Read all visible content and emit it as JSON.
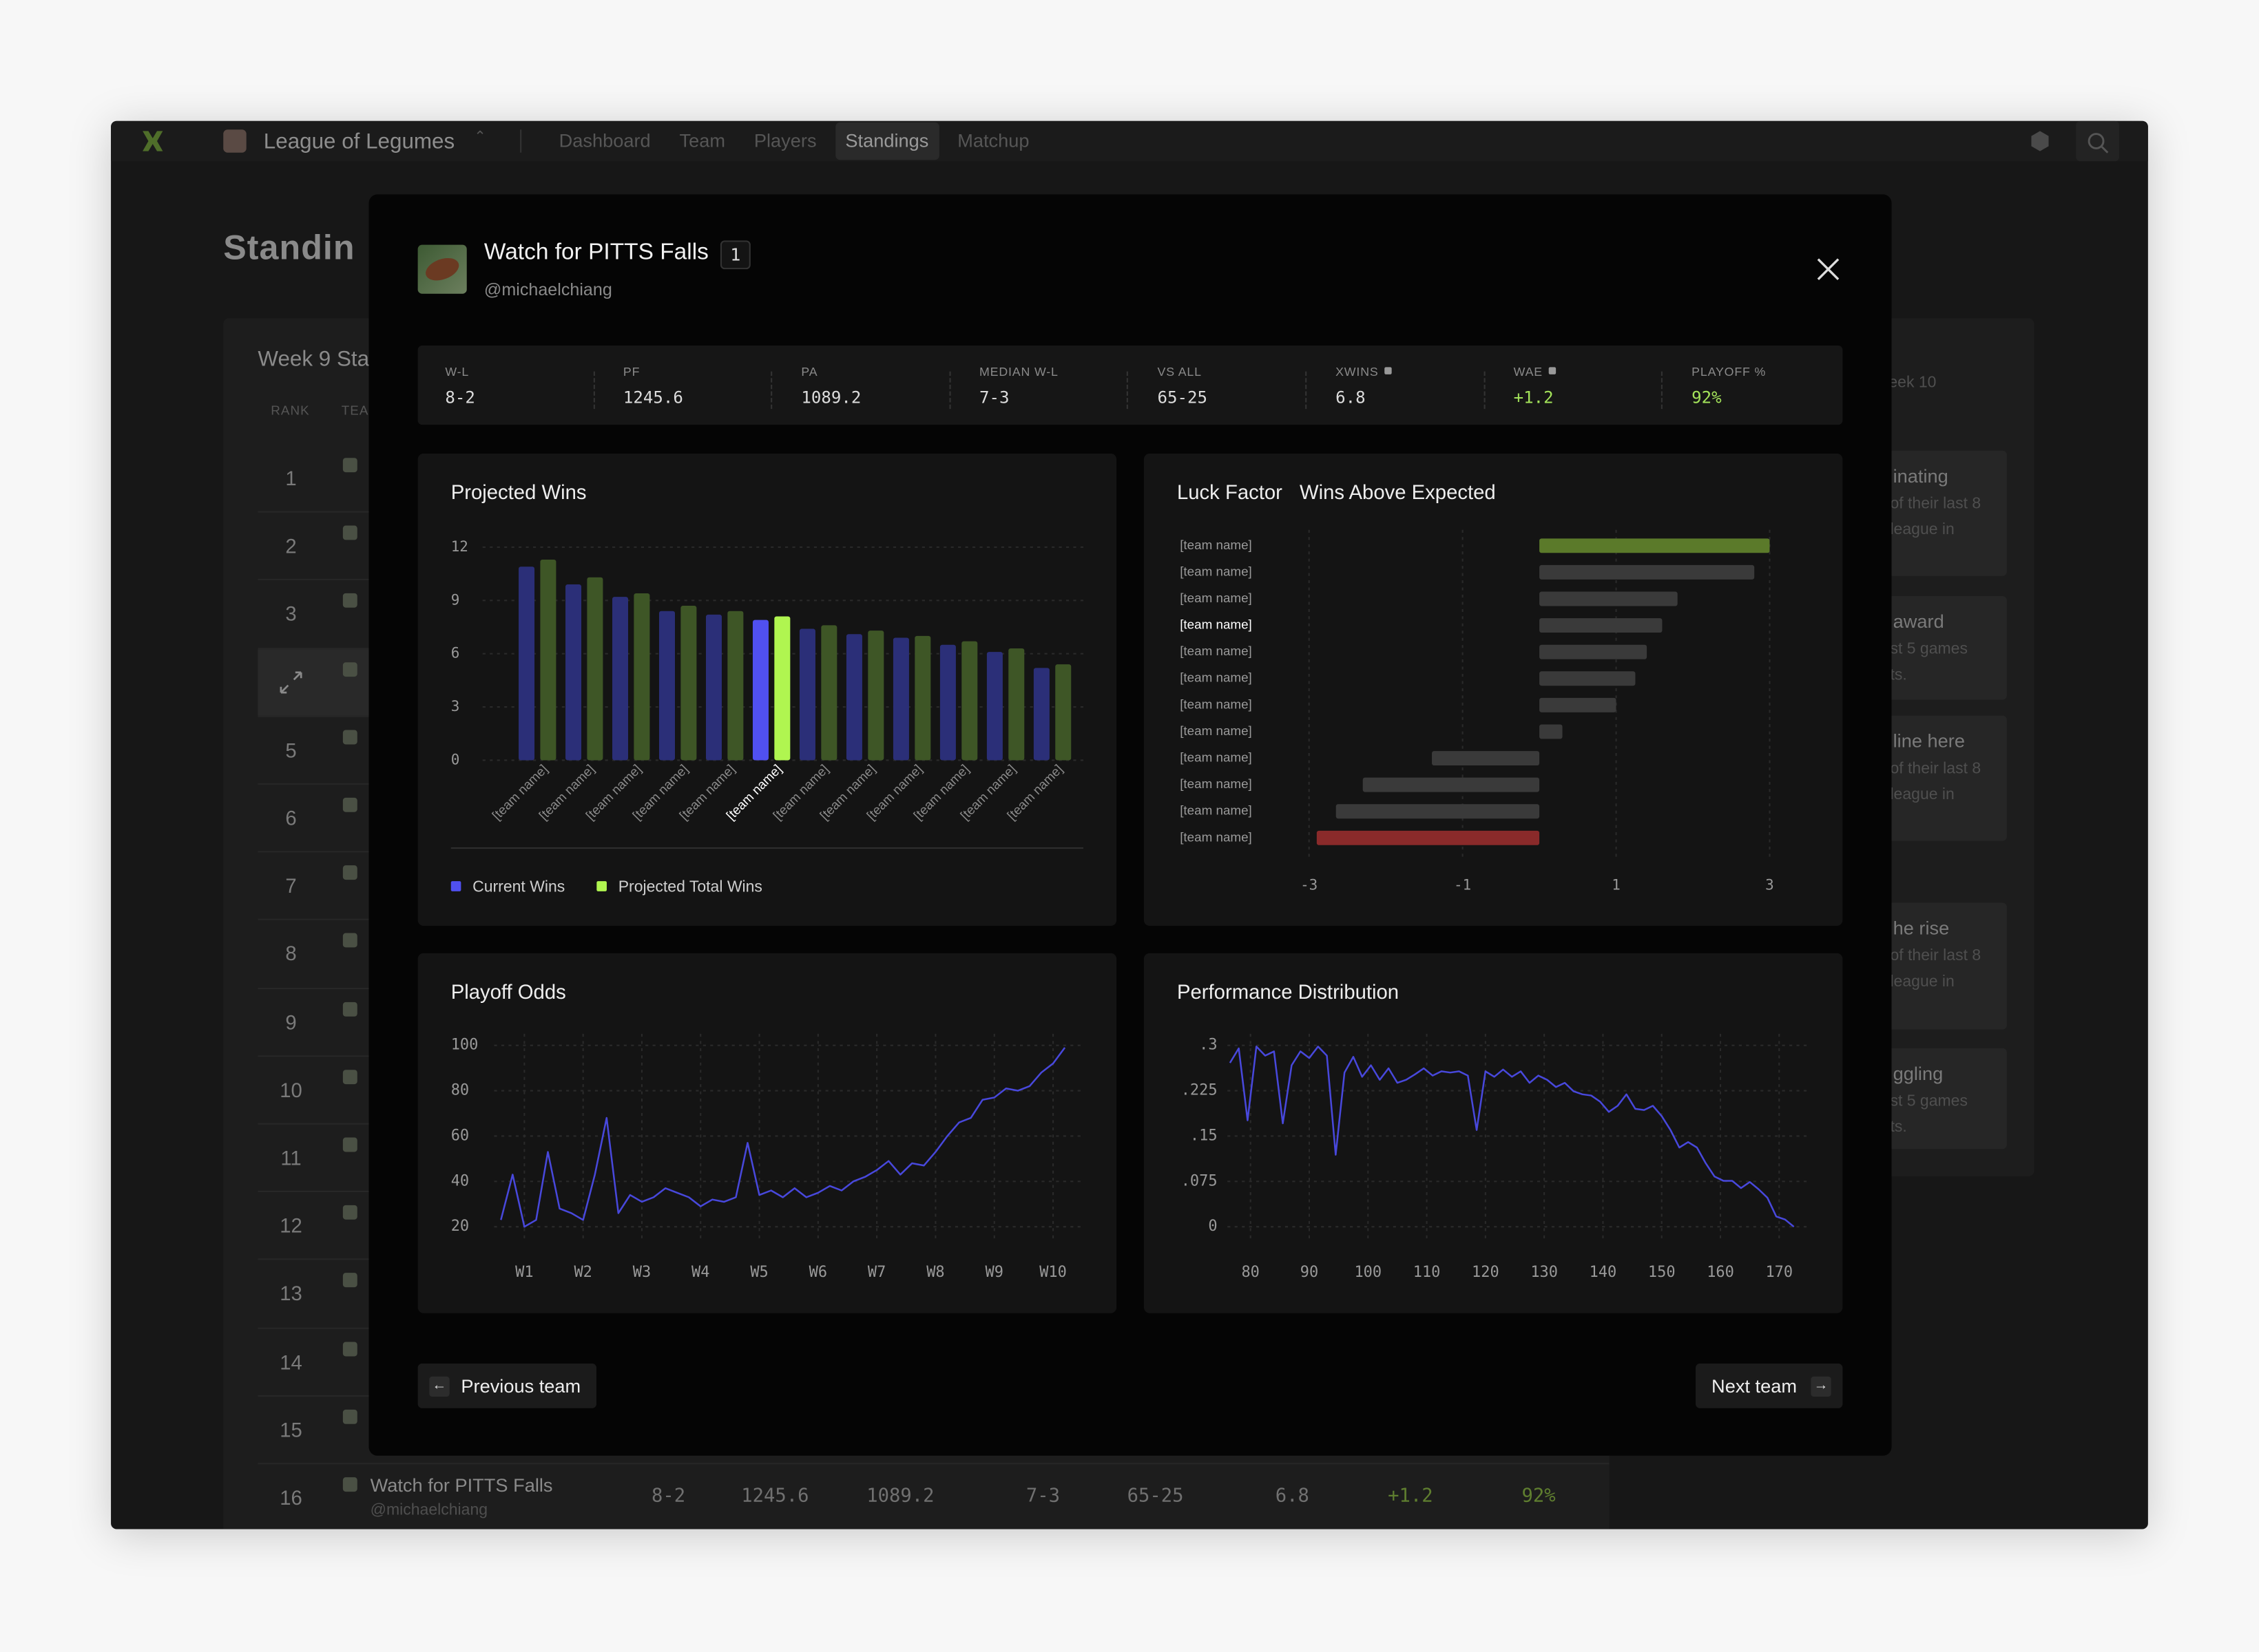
{
  "nav": {
    "league": "League of Legumes",
    "items": [
      "Dashboard",
      "Team",
      "Players",
      "Standings",
      "Matchup"
    ],
    "active": 3
  },
  "page": {
    "title": "Standin",
    "table_title": "Week 9 Sta",
    "columns": [
      "RANK",
      "TEA"
    ]
  },
  "table": {
    "ranks": [
      1,
      2,
      3,
      null,
      5,
      6,
      7,
      8,
      9,
      10,
      11,
      12,
      13,
      14,
      15,
      16
    ],
    "last_row": {
      "team": "Watch for PITTS Falls",
      "handle": "@michaelchiang",
      "cells": [
        "8-2",
        "1245.6",
        "1089.2",
        "7-3",
        "65-25",
        "6.8",
        "+1.2",
        "92%"
      ],
      "accent_cells": [
        6,
        7
      ],
      "accent_color": "#5f7e2f"
    }
  },
  "side": {
    "heading": "eek 10",
    "cards": [
      {
        "title": "inating",
        "lines": [
          "of their last 8",
          "league in"
        ]
      },
      {
        "title": "award",
        "lines": [
          "st 5 games",
          "ts."
        ]
      },
      {
        "title": "line here",
        "lines": [
          "of their last 8",
          "league in"
        ]
      },
      {
        "title": "he rise",
        "lines": [
          "of their last 8",
          "league in"
        ]
      },
      {
        "title": "ggling",
        "lines": [
          "st 5 games",
          "ts."
        ]
      }
    ]
  },
  "modal": {
    "team": "Watch for PITTS Falls",
    "rank": 1,
    "handle": "@michaelchiang",
    "stats": [
      {
        "label": "W-L",
        "value": "8-2"
      },
      {
        "label": "PF",
        "value": "1245.6"
      },
      {
        "label": "PA",
        "value": "1089.2"
      },
      {
        "label": "MEDIAN W-L",
        "value": "7-3"
      },
      {
        "label": "VS ALL",
        "value": "65-25"
      },
      {
        "label": "XWINS",
        "value": "6.8",
        "info": true
      },
      {
        "label": "WAE",
        "value": "+1.2",
        "info": true,
        "color": "#a3e25a"
      },
      {
        "label": "PLAYOFF %",
        "value": "92%",
        "color": "#a3e25a"
      }
    ],
    "prev": "Previous team",
    "next": "Next team"
  },
  "chart_data": [
    {
      "type": "bar",
      "title": "Projected Wins",
      "categories": [
        "[team name]",
        "[team name]",
        "[team name]",
        "[team name]",
        "[team name]",
        "[team name]",
        "[team name]",
        "[team name]",
        "[team name]",
        "[team name]",
        "[team name]",
        "[team name]"
      ],
      "series": [
        {
          "name": "Current Wins",
          "color": "#5050f0",
          "muted_color": "#2b2f78",
          "values": [
            10.9,
            9.9,
            9.2,
            8.4,
            8.2,
            7.9,
            7.4,
            7.1,
            6.9,
            6.5,
            6.1,
            5.2
          ]
        },
        {
          "name": "Projected Total Wins",
          "color": "#b0f550",
          "muted_color": "#3e5626",
          "values": [
            11.3,
            10.3,
            9.4,
            8.7,
            8.4,
            8.1,
            7.6,
            7.3,
            7.0,
            6.7,
            6.3,
            5.4
          ]
        }
      ],
      "highlight_index": 5,
      "ylim": [
        0,
        12
      ],
      "yticks": [
        0,
        3,
        6,
        9,
        12
      ],
      "grid": true,
      "legend": "bottom-left"
    },
    {
      "type": "hbar",
      "title": "Luck Factor",
      "subtitle": "Wins Above Expected",
      "categories": [
        "[team name]",
        "[team name]",
        "[team name]",
        "[team name]",
        "[team name]",
        "[team name]",
        "[team name]",
        "[team name]",
        "[team name]",
        "[team name]",
        "[team name]",
        "[team name]"
      ],
      "values": [
        3.0,
        2.8,
        1.8,
        1.6,
        1.4,
        1.25,
        1.0,
        0.3,
        -1.4,
        -2.3,
        -2.65,
        -2.9
      ],
      "colors": [
        "#5b7a2a",
        "#3a3a3a",
        "#3a3a3a",
        "#3a3a3a",
        "#3a3a3a",
        "#3a3a3a",
        "#3a3a3a",
        "#3a3a3a",
        "#3a3a3a",
        "#3a3a3a",
        "#3a3a3a",
        "#8a2a2a"
      ],
      "highlight_index": 3,
      "xlim": [
        -3.5,
        3.5
      ],
      "xticks": [
        -3,
        -1,
        1,
        3
      ],
      "grid": true
    },
    {
      "type": "line",
      "title": "Playoff Odds",
      "color": "#4848dc",
      "x": [
        0.6,
        0.8,
        1.0,
        1.2,
        1.4,
        1.6,
        1.8,
        2.0,
        2.2,
        2.4,
        2.6,
        2.8,
        3.0,
        3.2,
        3.4,
        3.6,
        3.8,
        4.0,
        4.2,
        4.4,
        4.6,
        4.8,
        5.0,
        5.2,
        5.4,
        5.6,
        5.8,
        6.0,
        6.2,
        6.4,
        6.6,
        6.8,
        7.0,
        7.2,
        7.4,
        7.6,
        7.8,
        8.0,
        8.2,
        8.4,
        8.6,
        8.8,
        9.0,
        9.2,
        9.4,
        9.6,
        9.8,
        10.0,
        10.2
      ],
      "values": [
        23,
        43,
        20,
        23,
        53,
        28,
        26,
        23,
        43,
        68,
        26,
        34,
        31,
        33,
        37,
        35,
        33,
        29,
        32,
        31,
        33,
        57,
        34,
        36,
        33,
        37,
        33,
        35,
        38,
        36,
        40,
        42,
        45,
        49,
        43,
        48,
        47,
        53,
        60,
        66,
        68,
        76,
        77,
        81,
        80,
        82,
        88,
        92,
        99
      ],
      "xlim": [
        0.5,
        10.3
      ],
      "xticks": [
        {
          "value": 1,
          "label": "W1"
        },
        {
          "value": 2,
          "label": "W2"
        },
        {
          "value": 3,
          "label": "W3"
        },
        {
          "value": 4,
          "label": "W4"
        },
        {
          "value": 5,
          "label": "W5"
        },
        {
          "value": 6,
          "label": "W6"
        },
        {
          "value": 7,
          "label": "W7"
        },
        {
          "value": 8,
          "label": "W8"
        },
        {
          "value": 9,
          "label": "W9"
        },
        {
          "value": 10,
          "label": "W10"
        }
      ],
      "ylim": [
        20,
        100
      ],
      "yticks": [
        20,
        40,
        60,
        80,
        100
      ],
      "grid": true
    },
    {
      "type": "line",
      "title": "Performance Distribution",
      "color": "#4848dc",
      "x": [
        76.5,
        78,
        79.5,
        81,
        82.5,
        84,
        85.5,
        87,
        88.5,
        90,
        91.5,
        93,
        94.5,
        96,
        97.5,
        99,
        100.5,
        102,
        103.5,
        105,
        106.5,
        108,
        109.5,
        111,
        112.5,
        114,
        115.5,
        117,
        118.5,
        120,
        121.5,
        123,
        124.5,
        126,
        127.5,
        129,
        130.5,
        132,
        133.5,
        135,
        136.5,
        138,
        139.5,
        141,
        142.5,
        144,
        145.5,
        147,
        148.5,
        150,
        151.5,
        153,
        154.5,
        156,
        157.5,
        159,
        160.5,
        162,
        163.5,
        165,
        166.5,
        168,
        169.5,
        171,
        172.5
      ],
      "values": [
        0.271,
        0.295,
        0.176,
        0.298,
        0.283,
        0.29,
        0.171,
        0.267,
        0.29,
        0.279,
        0.298,
        0.283,
        0.119,
        0.255,
        0.281,
        0.248,
        0.267,
        0.243,
        0.262,
        0.238,
        0.243,
        0.252,
        0.262,
        0.25,
        0.257,
        0.255,
        0.257,
        0.25,
        0.16,
        0.257,
        0.248,
        0.26,
        0.248,
        0.257,
        0.238,
        0.25,
        0.243,
        0.231,
        0.238,
        0.224,
        0.219,
        0.217,
        0.207,
        0.19,
        0.2,
        0.219,
        0.195,
        0.193,
        0.2,
        0.183,
        0.16,
        0.131,
        0.14,
        0.131,
        0.105,
        0.083,
        0.076,
        0.076,
        0.064,
        0.074,
        0.062,
        0.048,
        0.017,
        0.012,
        0
      ],
      "xlim": [
        76,
        173
      ],
      "xticks": [
        80,
        90,
        100,
        110,
        120,
        130,
        140,
        150,
        160,
        170
      ],
      "ylim": [
        0,
        0.3
      ],
      "yticks": [
        0,
        {
          "value": 0.075,
          "label": ".075"
        },
        {
          "value": 0.15,
          "label": ".15"
        },
        {
          "value": 0.225,
          "label": ".225"
        },
        {
          "value": 0.3,
          "label": ".3"
        }
      ],
      "grid": true
    }
  ]
}
